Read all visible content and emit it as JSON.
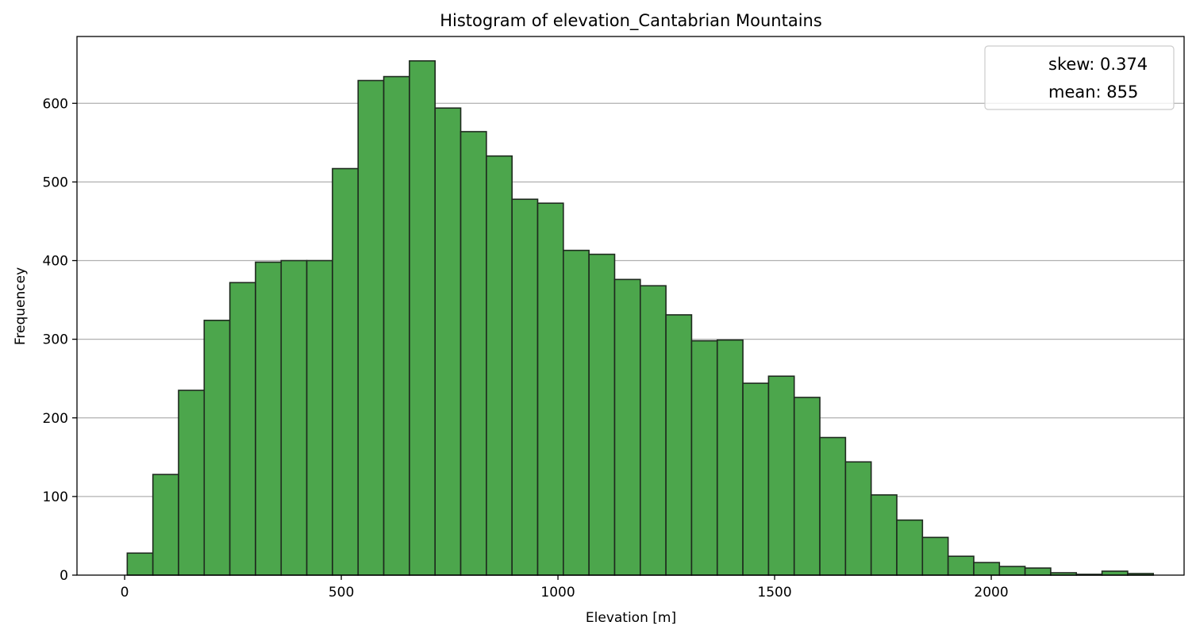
{
  "chart_data": {
    "type": "bar",
    "title": "Histogram of elevation_Cantabrian Mountains",
    "xlabel": "Elevation [m]",
    "ylabel": "Frequencey",
    "xlim": [
      -110,
      2445
    ],
    "ylim": [
      0,
      685
    ],
    "x_ticks": [
      0,
      500,
      1000,
      1500,
      2000
    ],
    "y_ticks": [
      0,
      100,
      200,
      300,
      400,
      500,
      600
    ],
    "grid": "horizontal",
    "legend_position": "top-right",
    "legend": [
      "skew: 0.374",
      "mean: 855"
    ],
    "bar_color": "#4ca64c",
    "edge_color": "#1e2a1e",
    "bin_start": 6,
    "bin_width": 59.2,
    "values": [
      28,
      128,
      235,
      324,
      372,
      398,
      400,
      400,
      517,
      629,
      634,
      654,
      594,
      564,
      533,
      478,
      473,
      413,
      408,
      376,
      368,
      331,
      298,
      299,
      244,
      253,
      226,
      175,
      144,
      102,
      70,
      48,
      24,
      16,
      11,
      9,
      3,
      1,
      5,
      2
    ]
  }
}
